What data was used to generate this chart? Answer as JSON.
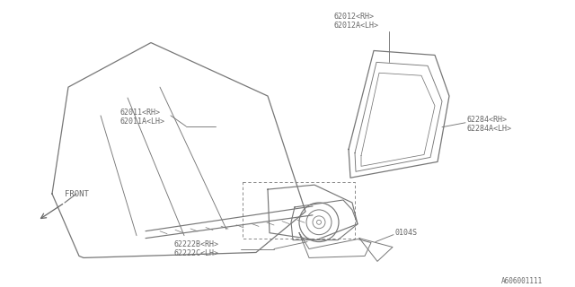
{
  "background_color": "#ffffff",
  "line_color": "#777777",
  "text_color": "#666666",
  "diagram_id": "A606001111",
  "labels": {
    "part1_line1": "62011<RH>",
    "part1_line2": "62011A<LH>",
    "part2_line1": "62012<RH>",
    "part2_line2": "62012A<LH>",
    "part3_line1": "62284<RH>",
    "part3_line2": "62284A<LH>",
    "part4_line1": "62222B<RH>",
    "part4_line2": "62222C<LH>",
    "subpart": "0104S",
    "front": "FRONT"
  },
  "font_size": 6.0,
  "font_family": "monospace"
}
